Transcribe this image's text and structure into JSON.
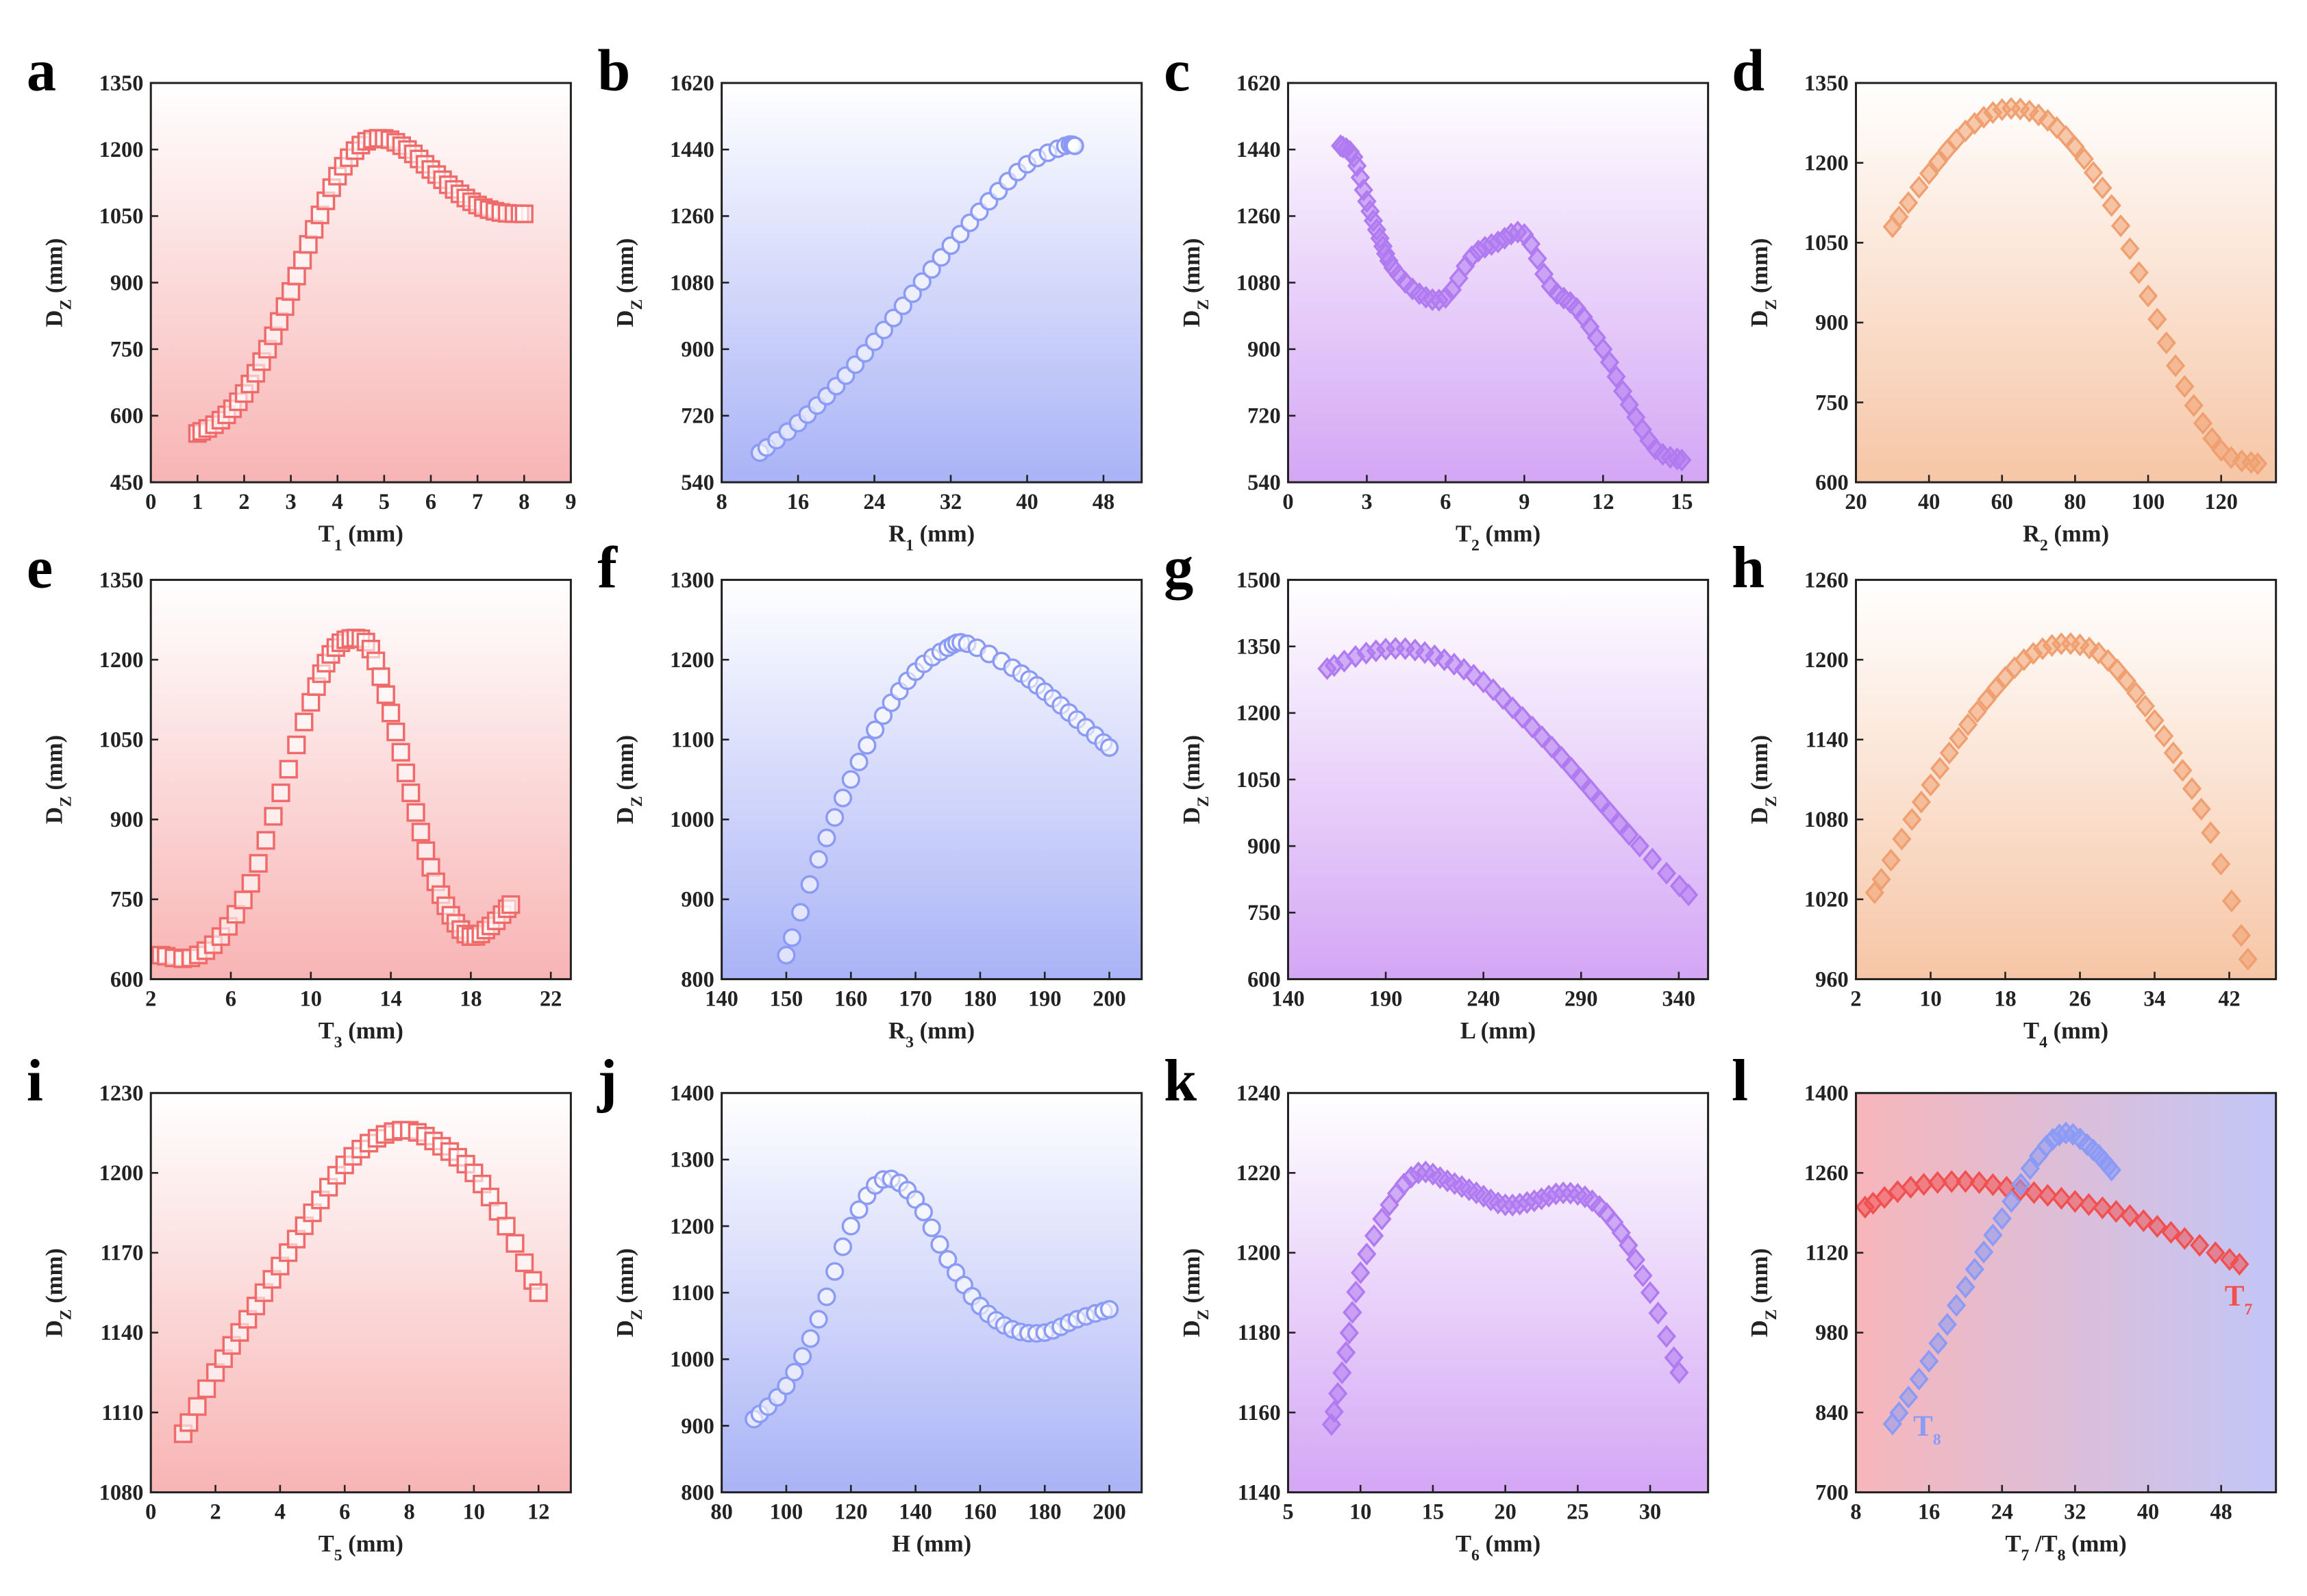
{
  "chart_data": [
    {
      "panel": "a",
      "type": "scatter",
      "xlabel": [
        [
          "T",
          0
        ],
        [
          "1",
          1
        ],
        [
          " (mm)",
          0
        ]
      ],
      "ylabel": [
        [
          "D",
          0
        ],
        [
          "Z",
          1
        ],
        [
          " (mm)",
          0
        ]
      ],
      "xlim": [
        0,
        9
      ],
      "ylim": [
        450,
        1350
      ],
      "xticks": [
        0,
        1,
        2,
        3,
        4,
        5,
        6,
        7,
        8,
        9
      ],
      "yticks": [
        450,
        600,
        750,
        900,
        1050,
        1200,
        1350
      ],
      "bg": "red",
      "series": [
        {
          "name": "",
          "marker": "square",
          "color": "#f06a6a",
          "x": [
            1,
            1.5,
            2,
            2.5,
            3,
            3.5,
            4,
            4.5,
            5,
            5.5,
            6,
            6.5,
            7,
            7.5,
            8
          ],
          "y": [
            560,
            590,
            650,
            750,
            880,
            1020,
            1140,
            1210,
            1225,
            1200,
            1155,
            1110,
            1075,
            1058,
            1055
          ]
        }
      ]
    },
    {
      "panel": "b",
      "type": "scatter",
      "xlabel": [
        [
          "R",
          0
        ],
        [
          "1",
          1
        ],
        [
          " (mm)",
          0
        ]
      ],
      "ylabel": [
        [
          "D",
          0
        ],
        [
          "Z",
          1
        ],
        [
          " (mm)",
          0
        ]
      ],
      "xlim": [
        8,
        52
      ],
      "ylim": [
        540,
        1620
      ],
      "xticks": [
        8,
        16,
        24,
        32,
        40,
        48
      ],
      "yticks": [
        540,
        720,
        900,
        1080,
        1260,
        1440,
        1620
      ],
      "bg": "blue",
      "series": [
        {
          "name": "",
          "marker": "circle",
          "color": "#8a9af5",
          "x": [
            12,
            16,
            20,
            24,
            28,
            32,
            36,
            40,
            44,
            45
          ],
          "y": [
            620,
            700,
            800,
            920,
            1050,
            1180,
            1300,
            1400,
            1450,
            1450
          ]
        }
      ]
    },
    {
      "panel": "c",
      "type": "scatter",
      "xlabel": [
        [
          "T",
          0
        ],
        [
          "2",
          1
        ],
        [
          " (mm)",
          0
        ]
      ],
      "ylabel": [
        [
          "D",
          0
        ],
        [
          "Z",
          1
        ],
        [
          " (mm)",
          0
        ]
      ],
      "xlim": [
        0,
        16
      ],
      "ylim": [
        540,
        1620
      ],
      "xticks": [
        0,
        3,
        6,
        9,
        12,
        15
      ],
      "yticks": [
        540,
        720,
        900,
        1080,
        1260,
        1440,
        1620
      ],
      "bg": "purple",
      "series": [
        {
          "name": "",
          "marker": "diamond",
          "color": "#b07af0",
          "x": [
            2,
            2.5,
            3,
            3.5,
            4,
            5,
            6,
            7,
            8,
            9,
            10,
            11,
            12,
            13,
            14,
            15
          ],
          "y": [
            1450,
            1420,
            1300,
            1200,
            1120,
            1050,
            1040,
            1150,
            1190,
            1210,
            1070,
            1010,
            900,
            750,
            630,
            600
          ]
        }
      ]
    },
    {
      "panel": "d",
      "type": "scatter",
      "xlabel": [
        [
          "R",
          0
        ],
        [
          "2",
          1
        ],
        [
          " (mm)",
          0
        ]
      ],
      "ylabel": [
        [
          "D",
          0
        ],
        [
          "Z",
          1
        ],
        [
          " (mm)",
          0
        ]
      ],
      "xlim": [
        20,
        135
      ],
      "ylim": [
        600,
        1350
      ],
      "xticks": [
        20,
        40,
        60,
        80,
        100,
        120
      ],
      "yticks": [
        600,
        750,
        900,
        1050,
        1200,
        1350
      ],
      "bg": "orange",
      "series": [
        {
          "name": "",
          "marker": "diamond",
          "color": "#f0a070",
          "x": [
            30,
            40,
            50,
            60,
            70,
            80,
            90,
            100,
            110,
            120,
            130
          ],
          "y": [
            1080,
            1180,
            1260,
            1300,
            1290,
            1230,
            1120,
            950,
            780,
            660,
            635
          ]
        }
      ]
    },
    {
      "panel": "e",
      "type": "scatter",
      "xlabel": [
        [
          "T",
          0
        ],
        [
          "3",
          1
        ],
        [
          " (mm)",
          0
        ]
      ],
      "ylabel": [
        [
          "D",
          0
        ],
        [
          "Z",
          1
        ],
        [
          " (mm)",
          0
        ]
      ],
      "xlim": [
        2,
        23
      ],
      "ylim": [
        600,
        1350
      ],
      "xticks": [
        2,
        6,
        10,
        14,
        18,
        22
      ],
      "yticks": [
        600,
        750,
        900,
        1050,
        1200,
        1350
      ],
      "bg": "red",
      "series": [
        {
          "name": "",
          "marker": "square",
          "color": "#f06a6a",
          "x": [
            2.5,
            4,
            5.5,
            7,
            8.5,
            10,
            11,
            12,
            13,
            14,
            15,
            16,
            17,
            18,
            19,
            20
          ],
          "y": [
            645,
            640,
            680,
            780,
            950,
            1120,
            1210,
            1240,
            1220,
            1100,
            950,
            810,
            720,
            680,
            700,
            740
          ]
        }
      ]
    },
    {
      "panel": "f",
      "type": "scatter",
      "xlabel": [
        [
          "R",
          0
        ],
        [
          "3",
          1
        ],
        [
          " (mm)",
          0
        ]
      ],
      "ylabel": [
        [
          "D",
          0
        ],
        [
          "Z",
          1
        ],
        [
          " (mm)",
          0
        ]
      ],
      "xlim": [
        140,
        205
      ],
      "ylim": [
        800,
        1300
      ],
      "xticks": [
        140,
        150,
        160,
        170,
        180,
        190,
        200
      ],
      "yticks": [
        800,
        900,
        1000,
        1100,
        1200,
        1300
      ],
      "bg": "blue",
      "series": [
        {
          "name": "",
          "marker": "circle",
          "color": "#8a9af5",
          "x": [
            150,
            155,
            160,
            165,
            170,
            175,
            178,
            185,
            190,
            195,
            200
          ],
          "y": [
            830,
            950,
            1050,
            1130,
            1185,
            1215,
            1220,
            1190,
            1160,
            1125,
            1090
          ]
        }
      ]
    },
    {
      "panel": "g",
      "type": "scatter",
      "xlabel": [
        [
          "L (mm)",
          0
        ]
      ],
      "ylabel": [
        [
          "D",
          0
        ],
        [
          "Z",
          1
        ],
        [
          " (mm)",
          0
        ]
      ],
      "xlim": [
        140,
        355
      ],
      "ylim": [
        600,
        1500
      ],
      "xticks": [
        140,
        190,
        240,
        290,
        340
      ],
      "yticks": [
        600,
        750,
        900,
        1050,
        1200,
        1350,
        1500
      ],
      "bg": "purple",
      "series": [
        {
          "name": "",
          "marker": "diamond",
          "color": "#b07af0",
          "x": [
            160,
            180,
            200,
            220,
            240,
            260,
            280,
            300,
            320,
            345
          ],
          "y": [
            1300,
            1335,
            1345,
            1320,
            1270,
            1190,
            1100,
            1000,
            900,
            790
          ]
        }
      ]
    },
    {
      "panel": "h",
      "type": "scatter",
      "xlabel": [
        [
          "T",
          0
        ],
        [
          "4",
          1
        ],
        [
          " (mm)",
          0
        ]
      ],
      "ylabel": [
        [
          "D",
          0
        ],
        [
          "Z",
          1
        ],
        [
          " (mm)",
          0
        ]
      ],
      "xlim": [
        2,
        47
      ],
      "ylim": [
        960,
        1260
      ],
      "xticks": [
        2,
        10,
        18,
        26,
        34,
        42
      ],
      "yticks": [
        960,
        1020,
        1080,
        1140,
        1200,
        1260
      ],
      "bg": "orange",
      "series": [
        {
          "name": "",
          "marker": "diamond",
          "color": "#f0a070",
          "x": [
            4,
            8,
            12,
            16,
            20,
            24,
            28,
            32,
            36,
            40,
            44
          ],
          "y": [
            1025,
            1080,
            1130,
            1170,
            1200,
            1212,
            1205,
            1175,
            1130,
            1070,
            975
          ]
        }
      ]
    },
    {
      "panel": "i",
      "type": "scatter",
      "xlabel": [
        [
          "T",
          0
        ],
        [
          "5",
          1
        ],
        [
          " (mm)",
          0
        ]
      ],
      "ylabel": [
        [
          "D",
          0
        ],
        [
          "Z",
          1
        ],
        [
          " (mm)",
          0
        ]
      ],
      "xlim": [
        0,
        13
      ],
      "ylim": [
        1080,
        1230
      ],
      "xticks": [
        0,
        2,
        4,
        6,
        8,
        10,
        12
      ],
      "yticks": [
        1080,
        1110,
        1140,
        1170,
        1200,
        1230
      ],
      "bg": "red",
      "series": [
        {
          "name": "",
          "marker": "square",
          "color": "#f06a6a",
          "x": [
            1,
            2,
            3,
            4,
            5,
            6,
            7,
            8,
            9,
            10,
            11,
            12
          ],
          "y": [
            1102,
            1125,
            1145,
            1165,
            1185,
            1203,
            1213,
            1216,
            1210,
            1200,
            1180,
            1155
          ]
        }
      ]
    },
    {
      "panel": "j",
      "type": "scatter",
      "xlabel": [
        [
          "H (mm)",
          0
        ]
      ],
      "ylabel": [
        [
          "D",
          0
        ],
        [
          "Z",
          1
        ],
        [
          " (mm)",
          0
        ]
      ],
      "xlim": [
        80,
        210
      ],
      "ylim": [
        800,
        1400
      ],
      "xticks": [
        80,
        100,
        120,
        140,
        160,
        180,
        200
      ],
      "yticks": [
        800,
        900,
        1000,
        1100,
        1200,
        1300,
        1400
      ],
      "bg": "blue",
      "series": [
        {
          "name": "",
          "marker": "circle",
          "color": "#8a9af5",
          "x": [
            90,
            100,
            110,
            120,
            130,
            140,
            150,
            160,
            170,
            180,
            190,
            200
          ],
          "y": [
            910,
            960,
            1060,
            1200,
            1270,
            1240,
            1150,
            1080,
            1045,
            1040,
            1060,
            1075
          ]
        }
      ]
    },
    {
      "panel": "k",
      "type": "scatter",
      "xlabel": [
        [
          "T",
          0
        ],
        [
          "6",
          1
        ],
        [
          " (mm)",
          0
        ]
      ],
      "ylabel": [
        [
          "D",
          0
        ],
        [
          "Z",
          1
        ],
        [
          " (mm)",
          0
        ]
      ],
      "xlim": [
        5,
        34
      ],
      "ylim": [
        1140,
        1240
      ],
      "xticks": [
        5,
        10,
        15,
        20,
        25,
        30
      ],
      "yticks": [
        1140,
        1160,
        1180,
        1200,
        1220,
        1240
      ],
      "bg": "purple",
      "series": [
        {
          "name": "",
          "marker": "diamond",
          "color": "#b07af0",
          "x": [
            8,
            9,
            10,
            12,
            14,
            16,
            18,
            20,
            22,
            24,
            26,
            28,
            30,
            32
          ],
          "y": [
            1157,
            1175,
            1195,
            1212,
            1220,
            1218,
            1215,
            1212,
            1213,
            1215,
            1213,
            1205,
            1190,
            1170
          ]
        }
      ]
    },
    {
      "panel": "l",
      "type": "scatter",
      "xlabel": [
        [
          "T",
          0
        ],
        [
          "7",
          1
        ],
        [
          " /T",
          0
        ],
        [
          "8",
          1
        ],
        [
          " (mm)",
          0
        ]
      ],
      "ylabel": [
        [
          "D",
          0
        ],
        [
          "Z",
          1
        ],
        [
          " (mm)",
          0
        ]
      ],
      "xlim": [
        8,
        54
      ],
      "ylim": [
        700,
        1400
      ],
      "xticks": [
        8,
        16,
        24,
        32,
        40,
        48
      ],
      "yticks": [
        700,
        840,
        980,
        1120,
        1260,
        1400
      ],
      "bg": "redblue",
      "series": [
        {
          "name": "T7",
          "label": [
            [
              "T",
              0
            ],
            [
              "7",
              1
            ]
          ],
          "marker": "diamond",
          "color": "#f05050",
          "x": [
            9,
            14,
            20,
            26,
            32,
            38,
            44,
            50
          ],
          "y": [
            1200,
            1235,
            1245,
            1230,
            1210,
            1185,
            1145,
            1100
          ]
        },
        {
          "name": "T8",
          "label": [
            [
              "T",
              0
            ],
            [
              "8",
              1
            ]
          ],
          "marker": "diamond",
          "color": "#8a9af5",
          "x": [
            12,
            16,
            20,
            24,
            28,
            31,
            34,
            36
          ],
          "y": [
            820,
            930,
            1060,
            1180,
            1290,
            1330,
            1300,
            1265
          ]
        }
      ]
    }
  ]
}
